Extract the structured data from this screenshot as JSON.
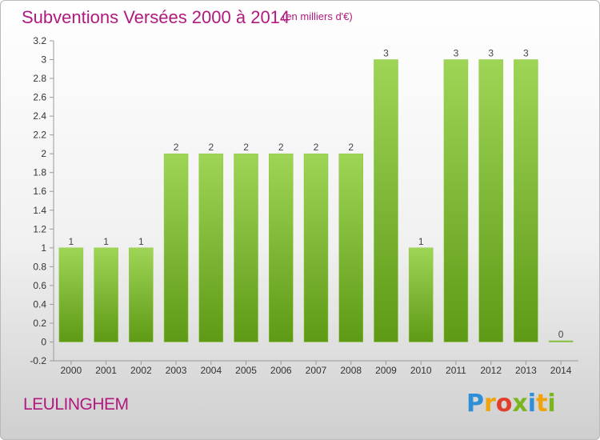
{
  "chart_data": {
    "type": "bar",
    "title": "Subventions Versées 2000 à 2014",
    "subtitle": "(en milliers d'€)",
    "categories": [
      "2000",
      "2001",
      "2002",
      "2003",
      "2004",
      "2005",
      "2006",
      "2007",
      "2008",
      "2009",
      "2010",
      "2011",
      "2012",
      "2013",
      "2014"
    ],
    "values": [
      1,
      1,
      1,
      2,
      2,
      2,
      2,
      2,
      2,
      3,
      1,
      3,
      3,
      3,
      0
    ],
    "value_labels": [
      "1",
      "1",
      "1",
      "2",
      "2",
      "2",
      "2",
      "2",
      "2",
      "3",
      "1",
      "3",
      "3",
      "3",
      "0"
    ],
    "ylim": [
      -0.2,
      3.2
    ],
    "yticks": [
      -0.2,
      0,
      0.2,
      0.4,
      0.6,
      0.8,
      1,
      1.2,
      1.4,
      1.6,
      1.8,
      2,
      2.2,
      2.4,
      2.6,
      2.8,
      3,
      3.2
    ],
    "ytick_labels": [
      "-0.2",
      "0",
      "0.2",
      "0.4",
      "0.6",
      "0.8",
      "1",
      "1.2",
      "1.4",
      "1.6",
      "1.8",
      "2",
      "2.2",
      "2.4",
      "2.6",
      "2.8",
      "3",
      "3.2"
    ],
    "grid": false,
    "colors": {
      "bar_light": "#9fd556",
      "bar_dark": "#5e9a16",
      "title": "#b0197e"
    }
  },
  "footer": {
    "commune": "LEULINGHEM",
    "brand_letters": [
      "P",
      "r",
      "o",
      "x",
      "i",
      "t",
      "i"
    ],
    "brand_colors": [
      "#2f8fd6",
      "#f0a30a",
      "#e0402b",
      "#7ab51d",
      "#2f8fd6",
      "#f0a30a",
      "#7ab51d"
    ]
  }
}
